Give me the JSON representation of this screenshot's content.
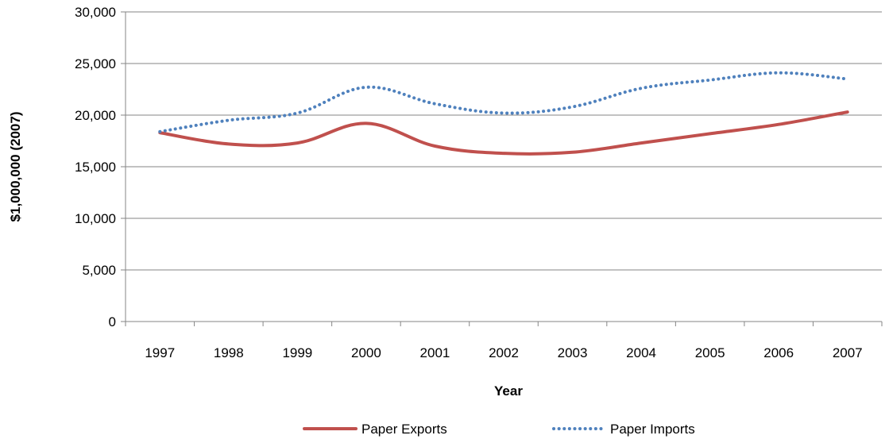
{
  "chart_data": {
    "type": "line",
    "x": [
      "1997",
      "1998",
      "1999",
      "2000",
      "2001",
      "2002",
      "2003",
      "2004",
      "2005",
      "2006",
      "2007"
    ],
    "series": [
      {
        "name": "Paper Exports",
        "color": "#c0504d",
        "style": "solid",
        "values": [
          18300,
          17200,
          17300,
          19200,
          17000,
          16300,
          16400,
          17300,
          18200,
          19100,
          20300
        ]
      },
      {
        "name": "Paper Imports",
        "color": "#4f81bd",
        "style": "dotted",
        "values": [
          18400,
          19500,
          20200,
          22700,
          21100,
          20200,
          20800,
          22600,
          23400,
          24100,
          23500
        ]
      }
    ],
    "title": "",
    "xlabel": "Year",
    "ylabel": "$1,000,000 (2007)",
    "ylim": [
      0,
      30000
    ],
    "yticks": [
      "0",
      "5,000",
      "10,000",
      "15,000",
      "20,000",
      "25,000",
      "30,000"
    ],
    "grid": "horizontal",
    "legend_position": "bottom"
  }
}
